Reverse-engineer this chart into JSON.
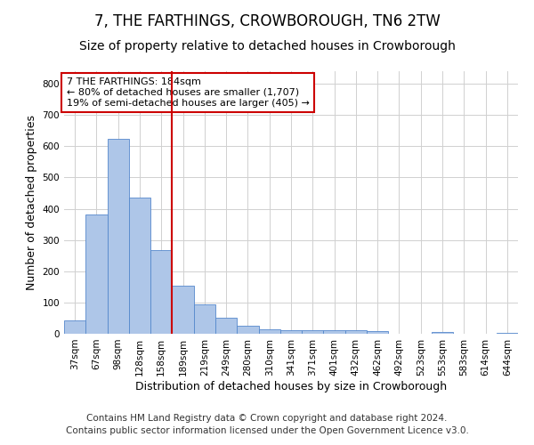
{
  "title": "7, THE FARTHINGS, CROWBOROUGH, TN6 2TW",
  "subtitle": "Size of property relative to detached houses in Crowborough",
  "xlabel": "Distribution of detached houses by size in Crowborough",
  "ylabel": "Number of detached properties",
  "categories": [
    "37sqm",
    "67sqm",
    "98sqm",
    "128sqm",
    "158sqm",
    "189sqm",
    "219sqm",
    "249sqm",
    "280sqm",
    "310sqm",
    "341sqm",
    "371sqm",
    "401sqm",
    "432sqm",
    "462sqm",
    "492sqm",
    "523sqm",
    "553sqm",
    "583sqm",
    "614sqm",
    "644sqm"
  ],
  "values": [
    42,
    382,
    625,
    437,
    268,
    153,
    95,
    52,
    27,
    15,
    11,
    11,
    11,
    11,
    8,
    0,
    0,
    7,
    0,
    0,
    3
  ],
  "bar_color": "#aec6e8",
  "bar_edge_color": "#5588cc",
  "vline_x_index": 5,
  "vline_color": "#cc0000",
  "annotation_text": "7 THE FARTHINGS: 184sqm\n← 80% of detached houses are smaller (1,707)\n19% of semi-detached houses are larger (405) →",
  "annotation_box_color": "#ffffff",
  "annotation_box_edge": "#cc0000",
  "ylim": [
    0,
    840
  ],
  "yticks": [
    0,
    100,
    200,
    300,
    400,
    500,
    600,
    700,
    800
  ],
  "footer_line1": "Contains HM Land Registry data © Crown copyright and database right 2024.",
  "footer_line2": "Contains public sector information licensed under the Open Government Licence v3.0.",
  "title_fontsize": 12,
  "subtitle_fontsize": 10,
  "axis_label_fontsize": 9,
  "tick_fontsize": 7.5,
  "annotation_fontsize": 8,
  "footer_fontsize": 7.5
}
